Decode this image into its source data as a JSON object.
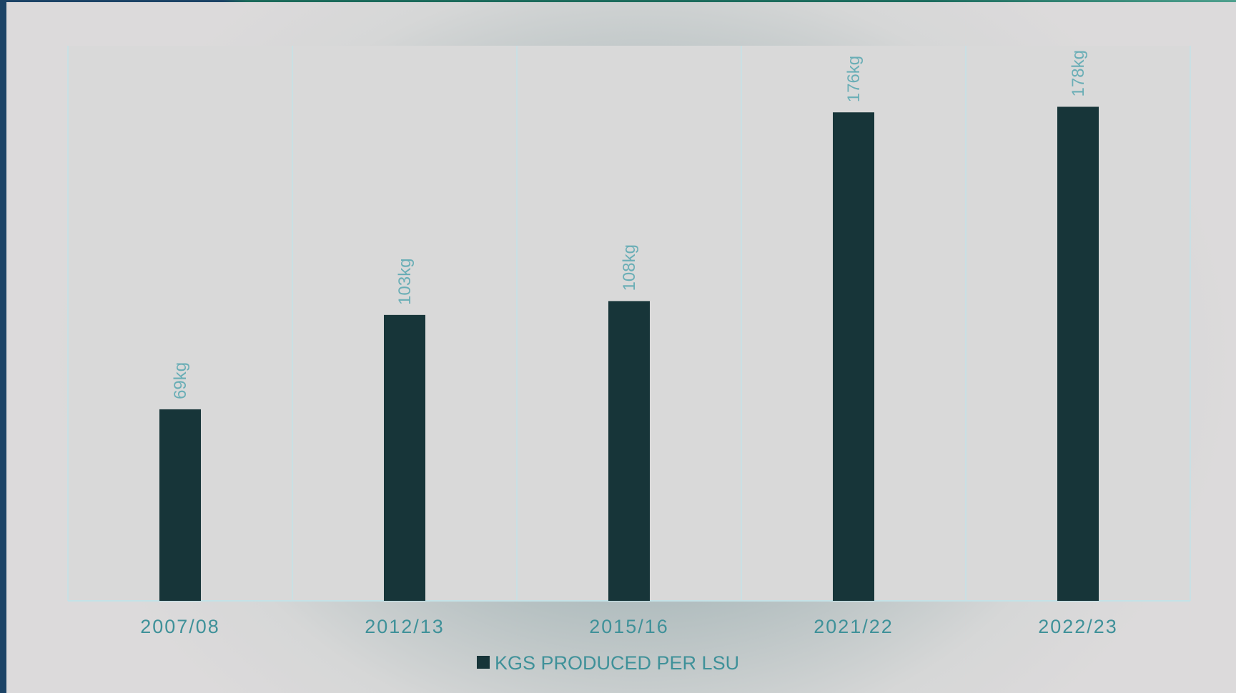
{
  "chart_data": {
    "type": "bar",
    "categories": [
      "2007/08",
      "2012/13",
      "2015/16",
      "2021/22",
      "2022/23"
    ],
    "series": [
      {
        "name": "KGS PRODUCED PER LSU",
        "values": [
          69,
          103,
          108,
          176,
          178
        ],
        "data_labels": [
          "69kg",
          "103kg",
          "108kg",
          "176kg",
          "178kg"
        ],
        "color": "#173539"
      }
    ],
    "title": "",
    "xlabel": "",
    "ylabel": "",
    "ylim": [
      0,
      200
    ],
    "grid": "vertical",
    "legend_position": "bottom",
    "data_label_orientation": "vertical"
  },
  "colors": {
    "bar": "#173539",
    "gridline": "#c4e2e7",
    "text_accent": "#3f9199",
    "data_label": "#6aaeb6"
  }
}
